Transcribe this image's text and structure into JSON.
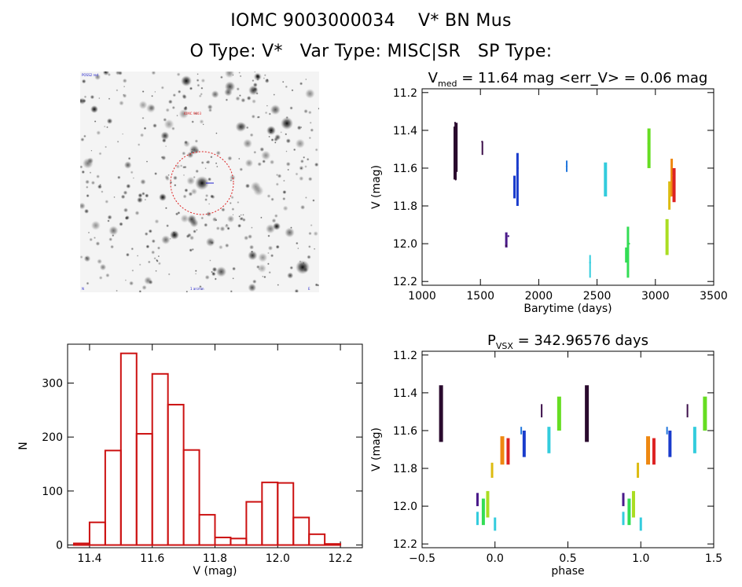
{
  "header": {
    "line1": "IOMC 9003000034    V* BN Mus",
    "line2": "O Type: V*   Var Type: MISC|SR   SP Type:"
  },
  "colors": {
    "histogram": "#cc1111",
    "aperture": "#dd2222",
    "seasons": [
      "#2a0a2e",
      "#3c0f4a",
      "#4a1a8a",
      "#1a3ccc",
      "#2277dd",
      "#33ccdd",
      "#33dd55",
      "#66dd22",
      "#aadd22",
      "#ddbb11",
      "#ee8811",
      "#dd2222"
    ]
  },
  "sky_image": {
    "label_top_left": "POSS2 red",
    "label_target": "IOMC 9003",
    "label_bottom_left": "N",
    "label_bottom_mid": "1 arcmin",
    "label_bottom_right": "E"
  },
  "chart_data": [
    {
      "id": "lightcurve",
      "type": "scatter",
      "title_prefix": "V",
      "title_subscript": "med",
      "title_suffix": " = 11.64 mag <err_V> = 0.06 mag",
      "xlabel": "Barytime (days)",
      "ylabel": "V (mag)",
      "xlim": [
        1000,
        3500
      ],
      "ylim": [
        12.22,
        11.18
      ],
      "xticks": [
        1000,
        1500,
        2000,
        2500,
        3000,
        3500
      ],
      "xtick_labels": [
        "1000",
        "1500",
        "2000",
        "2500",
        "3000",
        "3500"
      ],
      "yticks": [
        11.2,
        11.4,
        11.6,
        11.8,
        12.0,
        12.2
      ],
      "ytick_labels": [
        "11.2",
        "11.4",
        "11.6",
        "11.8",
        "12.0",
        "12.2"
      ],
      "series": [
        {
          "name": "season-1",
          "color_index": 0,
          "x": [
            1283,
            1288,
            1293
          ],
          "y": [
            11.36,
            11.66,
            11.52
          ]
        },
        {
          "name": "season-2",
          "color_index": 1,
          "x": [
            1515,
            1720
          ],
          "y": [
            11.46,
            12.01
          ]
        },
        {
          "name": "season-3",
          "color_index": 2,
          "x": [
            1740
          ],
          "y": [
            11.96
          ]
        },
        {
          "name": "season-4",
          "color_index": 3,
          "x": [
            1790,
            1820
          ],
          "y": [
            11.7,
            11.6
          ]
        },
        {
          "name": "season-5",
          "color_index": 4,
          "x": [
            2240
          ],
          "y": [
            11.59
          ]
        },
        {
          "name": "season-6",
          "color_index": 5,
          "x": [
            2440,
            2575
          ],
          "y": [
            12.1,
            11.66
          ]
        },
        {
          "name": "season-7",
          "color_index": 6,
          "x": [
            2750,
            2775
          ],
          "y": [
            12.05,
            12.0
          ]
        },
        {
          "name": "season-8",
          "color_index": 7,
          "x": [
            2940
          ],
          "y": [
            11.47
          ]
        },
        {
          "name": "season-9",
          "color_index": 8,
          "x": [
            3100
          ],
          "y": [
            11.96
          ]
        },
        {
          "name": "season-10",
          "color_index": 9,
          "x": [
            3125
          ],
          "y": [
            11.75
          ]
        },
        {
          "name": "season-11",
          "color_index": 10,
          "x": [
            3140
          ],
          "y": [
            11.64
          ]
        },
        {
          "name": "season-12",
          "color_index": 11,
          "x": [
            3160
          ],
          "y": [
            11.69
          ]
        }
      ],
      "strips": [
        {
          "x": 1283,
          "y1": 11.38,
          "y2": 11.66,
          "color_index": 0,
          "w": 4
        },
        {
          "x": 1291,
          "y1": 11.36,
          "y2": 11.62,
          "color_index": 0,
          "w": 4
        },
        {
          "x": 1517,
          "y1": 11.46,
          "y2": 11.53,
          "color_index": 1,
          "w": 2
        },
        {
          "x": 1722,
          "y1": 11.94,
          "y2": 12.02,
          "color_index": 2,
          "w": 3
        },
        {
          "x": 1792,
          "y1": 11.64,
          "y2": 11.76,
          "color_index": 3,
          "w": 3
        },
        {
          "x": 1818,
          "y1": 11.52,
          "y2": 11.8,
          "color_index": 3,
          "w": 3
        },
        {
          "x": 2240,
          "y1": 11.56,
          "y2": 11.62,
          "color_index": 4,
          "w": 2
        },
        {
          "x": 2440,
          "y1": 12.06,
          "y2": 12.18,
          "color_index": 5,
          "w": 2
        },
        {
          "x": 2572,
          "y1": 11.57,
          "y2": 11.75,
          "color_index": 5,
          "w": 4
        },
        {
          "x": 2750,
          "y1": 12.02,
          "y2": 12.1,
          "color_index": 6,
          "w": 3
        },
        {
          "x": 2765,
          "y1": 11.91,
          "y2": 12.18,
          "color_index": 6,
          "w": 3
        },
        {
          "x": 2945,
          "y1": 11.39,
          "y2": 11.6,
          "color_index": 7,
          "w": 4
        },
        {
          "x": 3100,
          "y1": 11.87,
          "y2": 12.06,
          "color_index": 8,
          "w": 4
        },
        {
          "x": 3120,
          "y1": 11.67,
          "y2": 11.82,
          "color_index": 9,
          "w": 3
        },
        {
          "x": 3140,
          "y1": 11.55,
          "y2": 11.75,
          "color_index": 10,
          "w": 3
        },
        {
          "x": 3160,
          "y1": 11.6,
          "y2": 11.78,
          "color_index": 11,
          "w": 4
        }
      ]
    },
    {
      "id": "histogram",
      "type": "bar",
      "title": "",
      "xlabel": "V (mag)",
      "ylabel": "N",
      "xlim": [
        11.33,
        12.27
      ],
      "ylim": [
        -5,
        372
      ],
      "xticks": [
        11.4,
        11.6,
        11.8,
        12.0,
        12.2
      ],
      "xtick_labels": [
        "11.4",
        "11.6",
        "11.8",
        "12.0",
        "12.2"
      ],
      "yticks": [
        0,
        100,
        200,
        300
      ],
      "ytick_labels": [
        "0",
        "100",
        "200",
        "300"
      ],
      "bin_edges": [
        11.35,
        11.4,
        11.45,
        11.5,
        11.55,
        11.6,
        11.65,
        11.7,
        11.75,
        11.8,
        11.85,
        11.9,
        11.95,
        12.0,
        12.05,
        12.1,
        12.15,
        12.2
      ],
      "values": [
        3,
        42,
        175,
        355,
        206,
        317,
        260,
        176,
        56,
        14,
        12,
        80,
        116,
        115,
        51,
        20,
        2
      ]
    },
    {
      "id": "phased",
      "type": "scatter",
      "title_prefix": "P",
      "title_subscript": "VSX",
      "title_suffix": " = 342.96576 days",
      "xlabel": "phase",
      "ylabel": "V (mag)",
      "xlim": [
        -0.5,
        1.5
      ],
      "ylim": [
        12.22,
        11.18
      ],
      "xticks": [
        -0.5,
        0.0,
        0.5,
        1.0,
        1.5
      ],
      "xtick_labels": [
        "−0.5",
        "0.0",
        "0.5",
        "1.0",
        "1.5"
      ],
      "yticks": [
        11.2,
        11.4,
        11.6,
        11.8,
        12.0,
        12.2
      ],
      "ytick_labels": [
        "11.2",
        "11.4",
        "11.6",
        "11.8",
        "12.0",
        "12.2"
      ],
      "strips": [
        {
          "x": -0.37,
          "y1": 11.36,
          "y2": 11.66,
          "color_index": 0,
          "w": 5
        },
        {
          "x": 0.63,
          "y1": 11.36,
          "y2": 11.66,
          "color_index": 0,
          "w": 5
        },
        {
          "x": -0.12,
          "y1": 11.93,
          "y2": 12.0,
          "color_index": 2,
          "w": 3
        },
        {
          "x": 0.88,
          "y1": 11.93,
          "y2": 12.0,
          "color_index": 2,
          "w": 3
        },
        {
          "x": -0.12,
          "y1": 12.03,
          "y2": 12.1,
          "color_index": 5,
          "w": 3
        },
        {
          "x": 0.88,
          "y1": 12.03,
          "y2": 12.1,
          "color_index": 5,
          "w": 3
        },
        {
          "x": -0.08,
          "y1": 11.96,
          "y2": 12.1,
          "color_index": 6,
          "w": 4
        },
        {
          "x": 0.92,
          "y1": 11.96,
          "y2": 12.1,
          "color_index": 6,
          "w": 4
        },
        {
          "x": -0.05,
          "y1": 11.92,
          "y2": 12.06,
          "color_index": 8,
          "w": 4
        },
        {
          "x": 0.95,
          "y1": 11.92,
          "y2": 12.06,
          "color_index": 8,
          "w": 4
        },
        {
          "x": 0.0,
          "y1": 12.06,
          "y2": 12.13,
          "color_index": 5,
          "w": 3
        },
        {
          "x": 1.0,
          "y1": 12.06,
          "y2": 12.13,
          "color_index": 5,
          "w": 3
        },
        {
          "x": -0.02,
          "y1": 11.77,
          "y2": 11.85,
          "color_index": 9,
          "w": 3
        },
        {
          "x": 0.98,
          "y1": 11.77,
          "y2": 11.85,
          "color_index": 9,
          "w": 3
        },
        {
          "x": 0.05,
          "y1": 11.63,
          "y2": 11.78,
          "color_index": 10,
          "w": 5
        },
        {
          "x": 1.05,
          "y1": 11.63,
          "y2": 11.78,
          "color_index": 10,
          "w": 5
        },
        {
          "x": 0.09,
          "y1": 11.64,
          "y2": 11.78,
          "color_index": 11,
          "w": 4
        },
        {
          "x": 1.09,
          "y1": 11.64,
          "y2": 11.78,
          "color_index": 11,
          "w": 4
        },
        {
          "x": 0.2,
          "y1": 11.6,
          "y2": 11.74,
          "color_index": 3,
          "w": 4
        },
        {
          "x": 1.2,
          "y1": 11.6,
          "y2": 11.74,
          "color_index": 3,
          "w": 4
        },
        {
          "x": 0.18,
          "y1": 11.58,
          "y2": 11.62,
          "color_index": 4,
          "w": 2
        },
        {
          "x": 1.18,
          "y1": 11.58,
          "y2": 11.62,
          "color_index": 4,
          "w": 2
        },
        {
          "x": 0.32,
          "y1": 11.46,
          "y2": 11.53,
          "color_index": 1,
          "w": 2
        },
        {
          "x": 1.32,
          "y1": 11.46,
          "y2": 11.53,
          "color_index": 1,
          "w": 2
        },
        {
          "x": 0.37,
          "y1": 11.58,
          "y2": 11.72,
          "color_index": 5,
          "w": 4
        },
        {
          "x": 1.37,
          "y1": 11.58,
          "y2": 11.72,
          "color_index": 5,
          "w": 4
        },
        {
          "x": 0.44,
          "y1": 11.42,
          "y2": 11.6,
          "color_index": 7,
          "w": 5
        },
        {
          "x": 1.44,
          "y1": 11.42,
          "y2": 11.6,
          "color_index": 7,
          "w": 5
        }
      ]
    }
  ]
}
